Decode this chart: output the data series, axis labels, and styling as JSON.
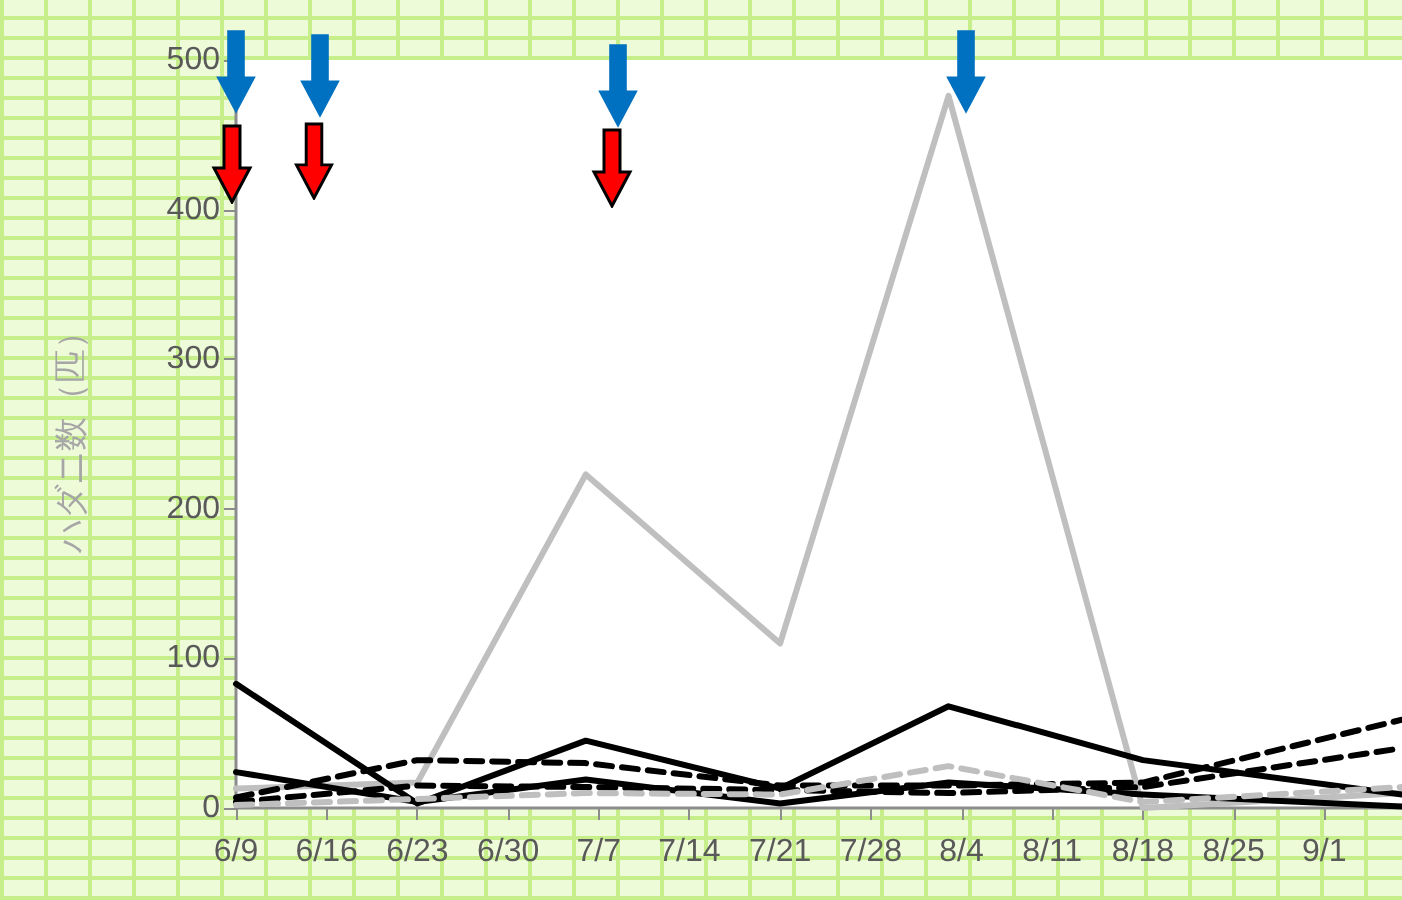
{
  "chart_data": {
    "type": "line",
    "ylabel": "ハダニ数（匹）",
    "x": [
      "--06-09",
      "--06-23",
      "--07-06",
      "--07-21",
      "--08-03",
      "--08-18",
      "--09-07"
    ],
    "xlim": [
      "--06-09",
      "--09-07"
    ],
    "xticks": [
      {
        "value": "--06-09",
        "label": "6/9"
      },
      {
        "value": "--06-16",
        "label": "6/16"
      },
      {
        "value": "--06-23",
        "label": "6/23"
      },
      {
        "value": "--06-30",
        "label": "6/30"
      },
      {
        "value": "--07-07",
        "label": "7/7"
      },
      {
        "value": "--07-14",
        "label": "7/14"
      },
      {
        "value": "--07-21",
        "label": "7/21"
      },
      {
        "value": "--07-28",
        "label": "7/28"
      },
      {
        "value": "--08-04",
        "label": "8/4"
      },
      {
        "value": "--08-11",
        "label": "8/11"
      },
      {
        "value": "--08-18",
        "label": "8/18"
      },
      {
        "value": "--08-25",
        "label": "8/25"
      },
      {
        "value": "--09-01",
        "label": "9/1"
      }
    ],
    "ylim": [
      0,
      500
    ],
    "yticks": [
      0,
      100,
      200,
      300,
      400,
      500
    ],
    "series": [
      {
        "color": "#bfbfbf",
        "line_style": "solid",
        "values": [
          13,
          17,
          223,
          110,
          476,
          0,
          10
        ]
      },
      {
        "color": "#000000",
        "line_style": "solid",
        "values": [
          83,
          3,
          45,
          13,
          68,
          32,
          9
        ]
      },
      {
        "color": "#000000",
        "line_style": "solid",
        "values": [
          24,
          4,
          19,
          3,
          17,
          9,
          1
        ]
      },
      {
        "color": "#000000",
        "line_style": "dashed",
        "values": [
          7,
          32,
          30,
          15,
          15,
          17,
          59
        ]
      },
      {
        "color": "#000000",
        "line_style": "dashed",
        "values": [
          4,
          15,
          14,
          12,
          10,
          14,
          40
        ]
      },
      {
        "color": "#bfbfbf",
        "line_style": "dashed",
        "values": [
          2,
          6,
          10,
          9,
          28,
          4,
          14
        ]
      }
    ],
    "marker": "none",
    "grid": false
  }
}
